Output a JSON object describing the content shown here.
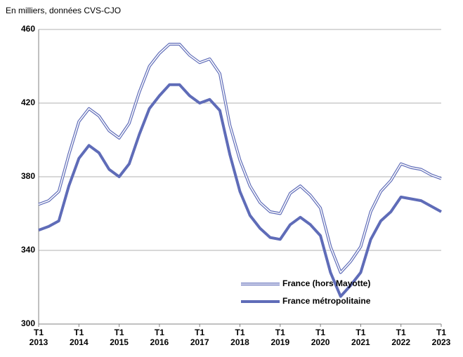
{
  "chart_data": {
    "type": "line",
    "subtitle": "En milliers, données CVS-CJO",
    "categories": [
      "T1 2013",
      null,
      null,
      null,
      "T1 2014",
      null,
      null,
      null,
      "T1 2015",
      null,
      null,
      null,
      "T1 2016",
      null,
      null,
      null,
      "T1 2017",
      null,
      null,
      null,
      "T1 2018",
      null,
      null,
      null,
      "T1 2019",
      null,
      null,
      null,
      "T1 2020",
      null,
      null,
      null,
      "T1 2021",
      null,
      null,
      null,
      "T1 2022",
      null,
      null,
      null,
      "T1 2023"
    ],
    "series": [
      {
        "name": "France (hors Mayotte)",
        "color": "#5f6cb8",
        "style": "double",
        "values": [
          365,
          367,
          372,
          392,
          410,
          417,
          413,
          405,
          401,
          409,
          426,
          440,
          447,
          452,
          452,
          446,
          442,
          444,
          436,
          408,
          389,
          375,
          366,
          361,
          360,
          371,
          375,
          370,
          363,
          342,
          328,
          334,
          342,
          361,
          372,
          378,
          387,
          385,
          384,
          381,
          379
        ]
      },
      {
        "name": "France métropolitaine",
        "color": "#5f6cb8",
        "style": "solid",
        "values": [
          351,
          353,
          356,
          375,
          390,
          397,
          393,
          384,
          380,
          387,
          403,
          417,
          424,
          430,
          430,
          424,
          420,
          422,
          416,
          392,
          372,
          359,
          352,
          347,
          346,
          354,
          358,
          354,
          348,
          328,
          315,
          321,
          328,
          346,
          356,
          361,
          369,
          368,
          367,
          364,
          361
        ]
      }
    ],
    "ylim": [
      300,
      460
    ],
    "yticks": [
      300,
      340,
      380,
      420,
      460
    ],
    "grid": true,
    "legend": "lower right"
  }
}
